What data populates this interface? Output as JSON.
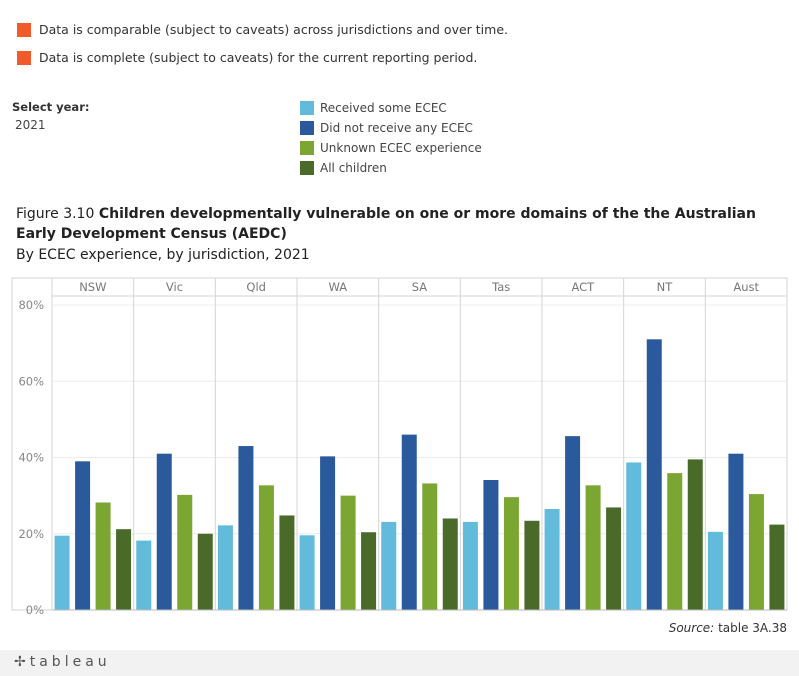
{
  "caveats": [
    "Data is comparable (subject to caveats) across jurisdictions and over time.",
    "Data is complete (subject to caveats) for the current reporting period."
  ],
  "caveat_color": "#f15a2a",
  "filter": {
    "label": "Select year:",
    "value": "2021"
  },
  "legend": [
    {
      "label": "Received some ECEC",
      "color": "#63bbdc"
    },
    {
      "label": "Did not receive any ECEC",
      "color": "#2a5a9b"
    },
    {
      "label": "Unknown ECEC experience",
      "color": "#7ba632"
    },
    {
      "label": "All children",
      "color": "#4a6a2a"
    }
  ],
  "title": {
    "figure": "Figure 3.10",
    "text": "Children developmentally vulnerable on one or more domains of the the Australian Early Development Census (AEDC)",
    "subtitle": "By ECEC experience, by jurisdiction, 2021"
  },
  "source": {
    "label": "Source:",
    "text": "table 3A.38"
  },
  "footer": {
    "logo": "tableau"
  },
  "chart_data": {
    "type": "bar",
    "categories": [
      "NSW",
      "Vic",
      "Qld",
      "WA",
      "SA",
      "Tas",
      "ACT",
      "NT",
      "Aust"
    ],
    "series": [
      {
        "name": "Received some ECEC",
        "color": "#63bbdc",
        "values": [
          19.5,
          18.2,
          22.2,
          19.6,
          23.1,
          23.1,
          26.5,
          38.7,
          20.5
        ]
      },
      {
        "name": "Did not receive any ECEC",
        "color": "#2a5a9b",
        "values": [
          39.0,
          41.0,
          43.0,
          40.3,
          46.0,
          34.1,
          45.6,
          71.0,
          41.0
        ]
      },
      {
        "name": "Unknown ECEC experience",
        "color": "#7ba632",
        "values": [
          28.2,
          30.2,
          32.7,
          30.0,
          33.2,
          29.6,
          32.7,
          35.9,
          30.4
        ]
      },
      {
        "name": "All children",
        "color": "#4a6a2a",
        "values": [
          21.2,
          20.0,
          24.8,
          20.4,
          24.0,
          23.4,
          26.9,
          39.5,
          22.4
        ]
      }
    ],
    "y_tick_labels": [
      "0%",
      "20%",
      "40%",
      "60%",
      "80%"
    ],
    "ylim": [
      0,
      80
    ],
    "grid": true
  }
}
